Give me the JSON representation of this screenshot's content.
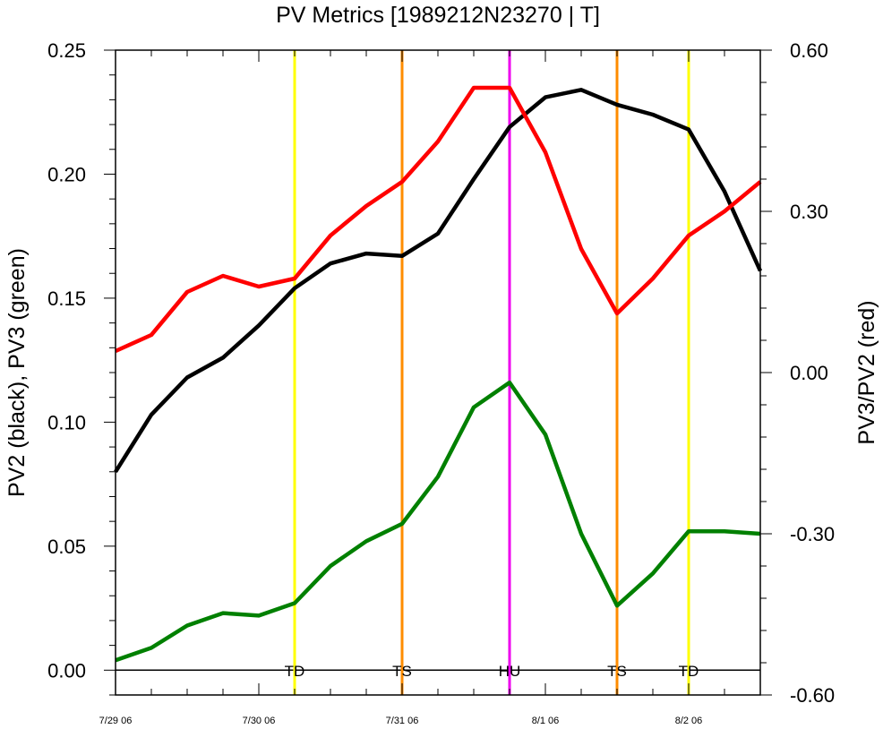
{
  "chart_data": {
    "type": "line",
    "title": "PV Metrics [1989212N23270 | T]",
    "ylabel_left": "PV2 (black), PV3 (green)",
    "ylabel_right": "PV3/PV2 (red)",
    "x_tick_labels": [
      "7/29 06",
      "7/30 06",
      "7/31 06",
      "8/1 06",
      "8/2 06"
    ],
    "x_tick_values": [
      0,
      4,
      8,
      12,
      16
    ],
    "xlim": [
      0,
      18
    ],
    "ylim_left": [
      -0.01,
      0.25
    ],
    "ylim_right": [
      -0.6,
      0.6
    ],
    "y_left_ticks": [
      0.0,
      0.05,
      0.1,
      0.15,
      0.2,
      0.25
    ],
    "y_left_tick_labels": [
      "0.00",
      "0.05",
      "0.10",
      "0.15",
      "0.20",
      "0.25"
    ],
    "y_right_ticks": [
      -0.6,
      -0.3,
      0.0,
      0.3,
      0.6
    ],
    "y_right_tick_labels": [
      "-0.60",
      "-0.30",
      "0.00",
      "0.30",
      "0.60"
    ],
    "x": [
      0,
      1,
      2,
      3,
      4,
      5,
      6,
      7,
      8,
      9,
      10,
      11,
      12,
      13,
      14,
      15,
      16,
      17,
      18
    ],
    "series": [
      {
        "axis": "left",
        "color": "#000000",
        "values": [
          0.08,
          0.103,
          0.118,
          0.126,
          0.139,
          0.154,
          0.164,
          0.168,
          0.167,
          0.176,
          0.198,
          0.219,
          0.231,
          0.234,
          0.228,
          0.224,
          0.218,
          0.193,
          0.161
        ]
      },
      {
        "axis": "left",
        "color": "#008000",
        "values": [
          0.004,
          0.009,
          0.018,
          0.023,
          0.022,
          0.027,
          0.042,
          0.052,
          0.059,
          0.078,
          0.106,
          0.116,
          0.095,
          0.055,
          0.026,
          0.039,
          0.056,
          0.056,
          0.055
        ]
      },
      {
        "axis": "right",
        "color": "#ff0000",
        "values": [
          0.04,
          0.07,
          0.15,
          0.18,
          0.16,
          0.175,
          0.255,
          0.31,
          0.355,
          0.43,
          0.53,
          0.53,
          0.41,
          0.23,
          0.11,
          0.175,
          0.255,
          0.3,
          0.355
        ]
      }
    ],
    "stage_lines": [
      {
        "x": 5,
        "label": "TD",
        "color": "#ffff00"
      },
      {
        "x": 8,
        "label": "TS",
        "color": "#ff8c00"
      },
      {
        "x": 11,
        "label": "HU",
        "color": "#ee00ee"
      },
      {
        "x": 14,
        "label": "TS",
        "color": "#ff8c00"
      },
      {
        "x": 16,
        "label": "TD",
        "color": "#ffff00"
      }
    ],
    "zero_line": 0.0
  }
}
